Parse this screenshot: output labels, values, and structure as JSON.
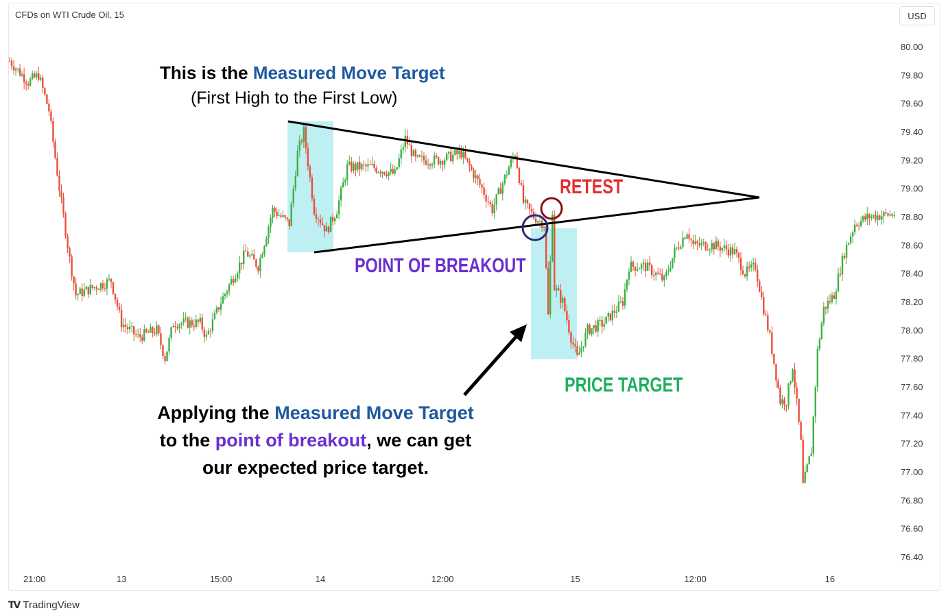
{
  "header": {
    "title": "CFDs on WTI Crude Oil, 15",
    "currency": "USD"
  },
  "footer": {
    "brand": "TradingView"
  },
  "annotations": {
    "top_prefix": "This is the ",
    "top_highlight": "Measured Move Target",
    "top_sub": "(First High to the First Low)",
    "retest": "RETEST",
    "breakout": "POINT OF BREAKOUT",
    "price_target": "PRICE TARGET",
    "bottom_1a": "Applying the ",
    "bottom_1b": "Measured Move Target",
    "bottom_2a": "to the ",
    "bottom_2b": "point of breakout",
    "bottom_2c": ", we can get",
    "bottom_3": "our expected price target."
  },
  "colors": {
    "up": "#3cb043",
    "down": "#e8503a",
    "highlight": "#b3ecf0",
    "blue": "#1f5aa0",
    "purple": "#6a2fd0",
    "retest": "#e03030",
    "target": "#1fb060"
  },
  "chart_data": {
    "type": "candlestick",
    "title": "CFDs on WTI Crude Oil, 15",
    "ylabel": "USD",
    "ylim": [
      76.4,
      80.0
    ],
    "y_ticks": [
      "80.00",
      "79.80",
      "79.60",
      "79.40",
      "79.20",
      "79.00",
      "78.80",
      "78.60",
      "78.40",
      "78.20",
      "78.00",
      "77.80",
      "77.60",
      "77.40",
      "77.20",
      "77.00",
      "76.80",
      "76.60",
      "76.40"
    ],
    "x_ticks": [
      {
        "label": "21:00",
        "bar": 12
      },
      {
        "label": "13",
        "bar": 54
      },
      {
        "label": "15:00",
        "bar": 102
      },
      {
        "label": "14",
        "bar": 150
      },
      {
        "label": "12:00",
        "bar": 209
      },
      {
        "label": "15",
        "bar": 273
      },
      {
        "label": "12:00",
        "bar": 331
      },
      {
        "label": "16",
        "bar": 396
      }
    ],
    "bars_total": 428,
    "price_path": [
      [
        0,
        79.9
      ],
      [
        9,
        79.75
      ],
      [
        14,
        79.8
      ],
      [
        19,
        79.55
      ],
      [
        24,
        79.0
      ],
      [
        29,
        78.5
      ],
      [
        32,
        78.25
      ],
      [
        49,
        78.35
      ],
      [
        54,
        78.05
      ],
      [
        62,
        77.95
      ],
      [
        71,
        78.0
      ],
      [
        75,
        77.8
      ],
      [
        79,
        78.05
      ],
      [
        92,
        78.05
      ],
      [
        95,
        77.95
      ],
      [
        102,
        78.2
      ],
      [
        114,
        78.55
      ],
      [
        120,
        78.45
      ],
      [
        127,
        78.85
      ],
      [
        135,
        78.75
      ],
      [
        139,
        79.25
      ],
      [
        142,
        79.4
      ],
      [
        147,
        78.85
      ],
      [
        153,
        78.7
      ],
      [
        158,
        78.85
      ],
      [
        163,
        79.15
      ],
      [
        175,
        79.15
      ],
      [
        186,
        79.1
      ],
      [
        191,
        79.35
      ],
      [
        196,
        79.2
      ],
      [
        208,
        79.2
      ],
      [
        218,
        79.25
      ],
      [
        228,
        79.0
      ],
      [
        233,
        78.85
      ],
      [
        241,
        79.15
      ],
      [
        244,
        79.25
      ],
      [
        248,
        78.9
      ],
      [
        253,
        78.8
      ],
      [
        258,
        78.75
      ],
      [
        260,
        78.1
      ],
      [
        262,
        78.85
      ],
      [
        263,
        78.3
      ],
      [
        267,
        78.2
      ],
      [
        271,
        77.95
      ],
      [
        274,
        77.8
      ],
      [
        279,
        78.0
      ],
      [
        287,
        78.05
      ],
      [
        296,
        78.2
      ],
      [
        299,
        78.45
      ],
      [
        307,
        78.45
      ],
      [
        316,
        78.35
      ],
      [
        321,
        78.55
      ],
      [
        327,
        78.7
      ],
      [
        330,
        78.6
      ],
      [
        340,
        78.6
      ],
      [
        350,
        78.55
      ],
      [
        355,
        78.4
      ],
      [
        360,
        78.45
      ],
      [
        364,
        78.15
      ],
      [
        367,
        77.95
      ],
      [
        372,
        77.5
      ],
      [
        375,
        77.5
      ],
      [
        378,
        77.75
      ],
      [
        382,
        77.2
      ],
      [
        383,
        76.9
      ],
      [
        387,
        77.15
      ],
      [
        390,
        77.85
      ],
      [
        393,
        78.15
      ],
      [
        398,
        78.25
      ],
      [
        403,
        78.55
      ],
      [
        408,
        78.75
      ],
      [
        415,
        78.8
      ],
      [
        428,
        78.82
      ]
    ]
  }
}
